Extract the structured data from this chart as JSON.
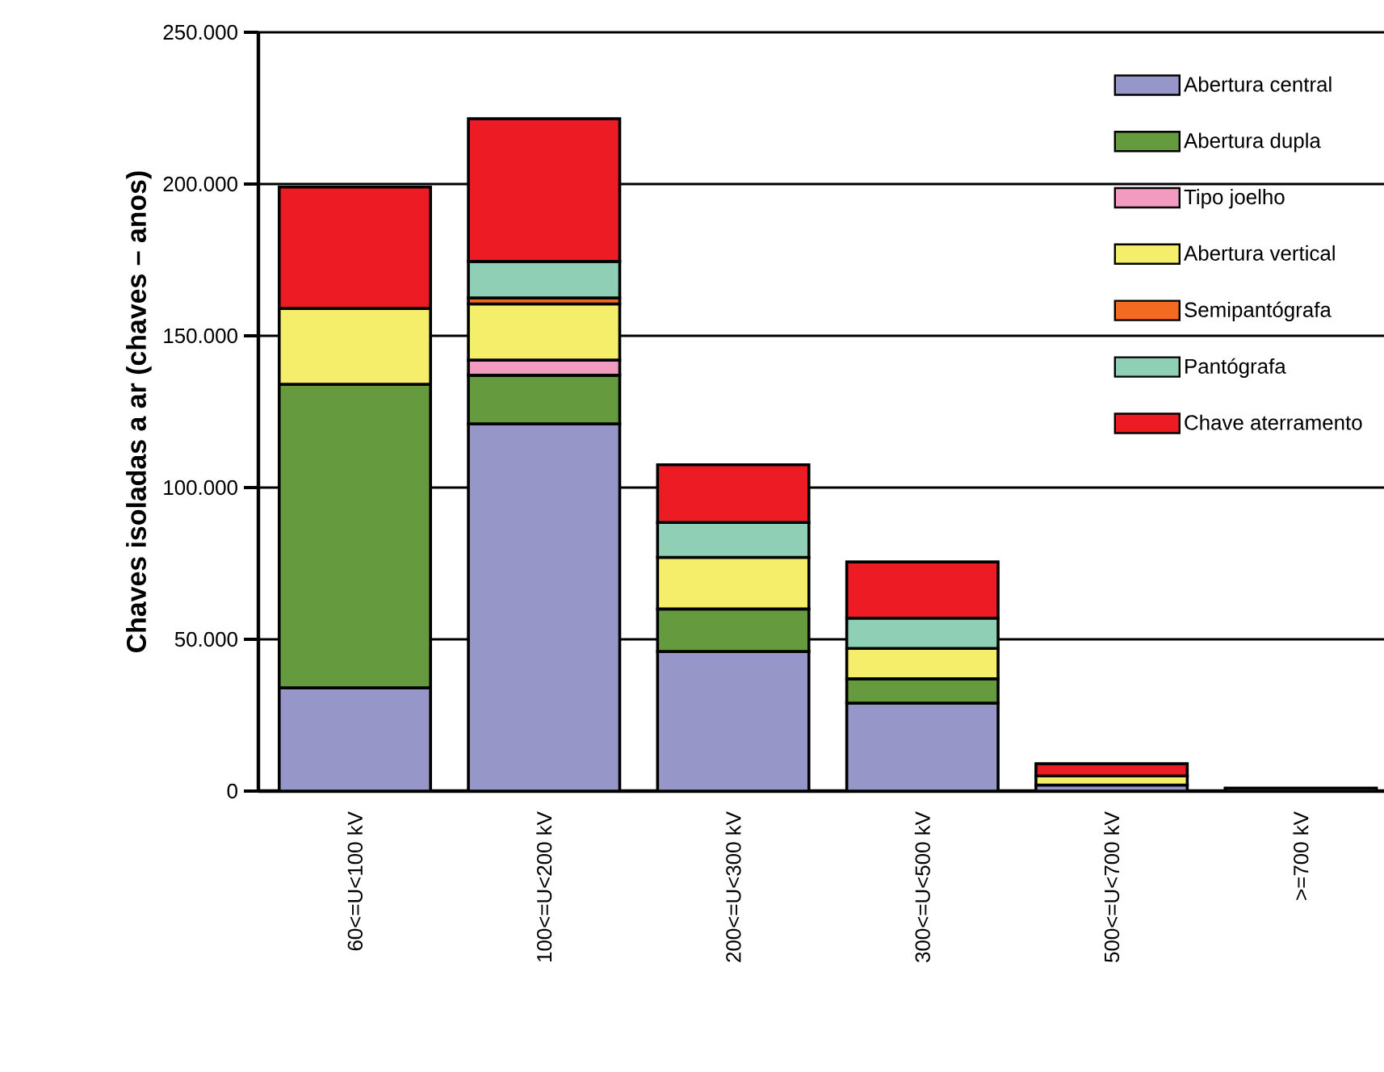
{
  "chart_data": {
    "type": "bar",
    "stacked": true,
    "ylabel": "Chaves isoladas a ar (chaves – anos)",
    "categories": [
      "60<=U<100 kV",
      "100<=U<200 kV",
      "200<=U<300 kV",
      "300<=U<500 kV",
      "500<=U<700 kV",
      ">=700 kV"
    ],
    "series": [
      {
        "name": "Abertura central",
        "color": "#9696c8",
        "values": [
          34000,
          121000,
          46000,
          29000,
          2000,
          1000
        ]
      },
      {
        "name": "Abertura dupla",
        "color": "#669a3e",
        "values": [
          100000,
          16000,
          14000,
          8000,
          null,
          null
        ]
      },
      {
        "name": "Tipo joelho",
        "color": "#f29bc1",
        "values": [
          null,
          5000,
          null,
          null,
          null,
          null
        ]
      },
      {
        "name": "Abertura vertical",
        "color": "#f5ee6a",
        "values": [
          25000,
          18500,
          17000,
          10000,
          3000,
          null
        ]
      },
      {
        "name": "Semipantógrafa",
        "color": "#f26b21",
        "values": [
          null,
          2000,
          null,
          null,
          null,
          null
        ]
      },
      {
        "name": "Pantógrafa",
        "color": "#8ecfb5",
        "values": [
          null,
          12000,
          11500,
          10000,
          null,
          null
        ]
      },
      {
        "name": "Chave aterramento",
        "color": "#ed1c24",
        "values": [
          40000,
          47000,
          19000,
          18500,
          4000,
          null
        ]
      }
    ],
    "ylim": [
      0,
      250000
    ],
    "yticks": [
      {
        "value": 0,
        "label": "0"
      },
      {
        "value": 50000,
        "label": "50.000"
      },
      {
        "value": 100000,
        "label": "100.000"
      },
      {
        "value": 150000,
        "label": "150.000"
      },
      {
        "value": 200000,
        "label": "200.000"
      },
      {
        "value": 250000,
        "label": "250.000"
      }
    ],
    "grid": "y",
    "legend": "top right"
  }
}
